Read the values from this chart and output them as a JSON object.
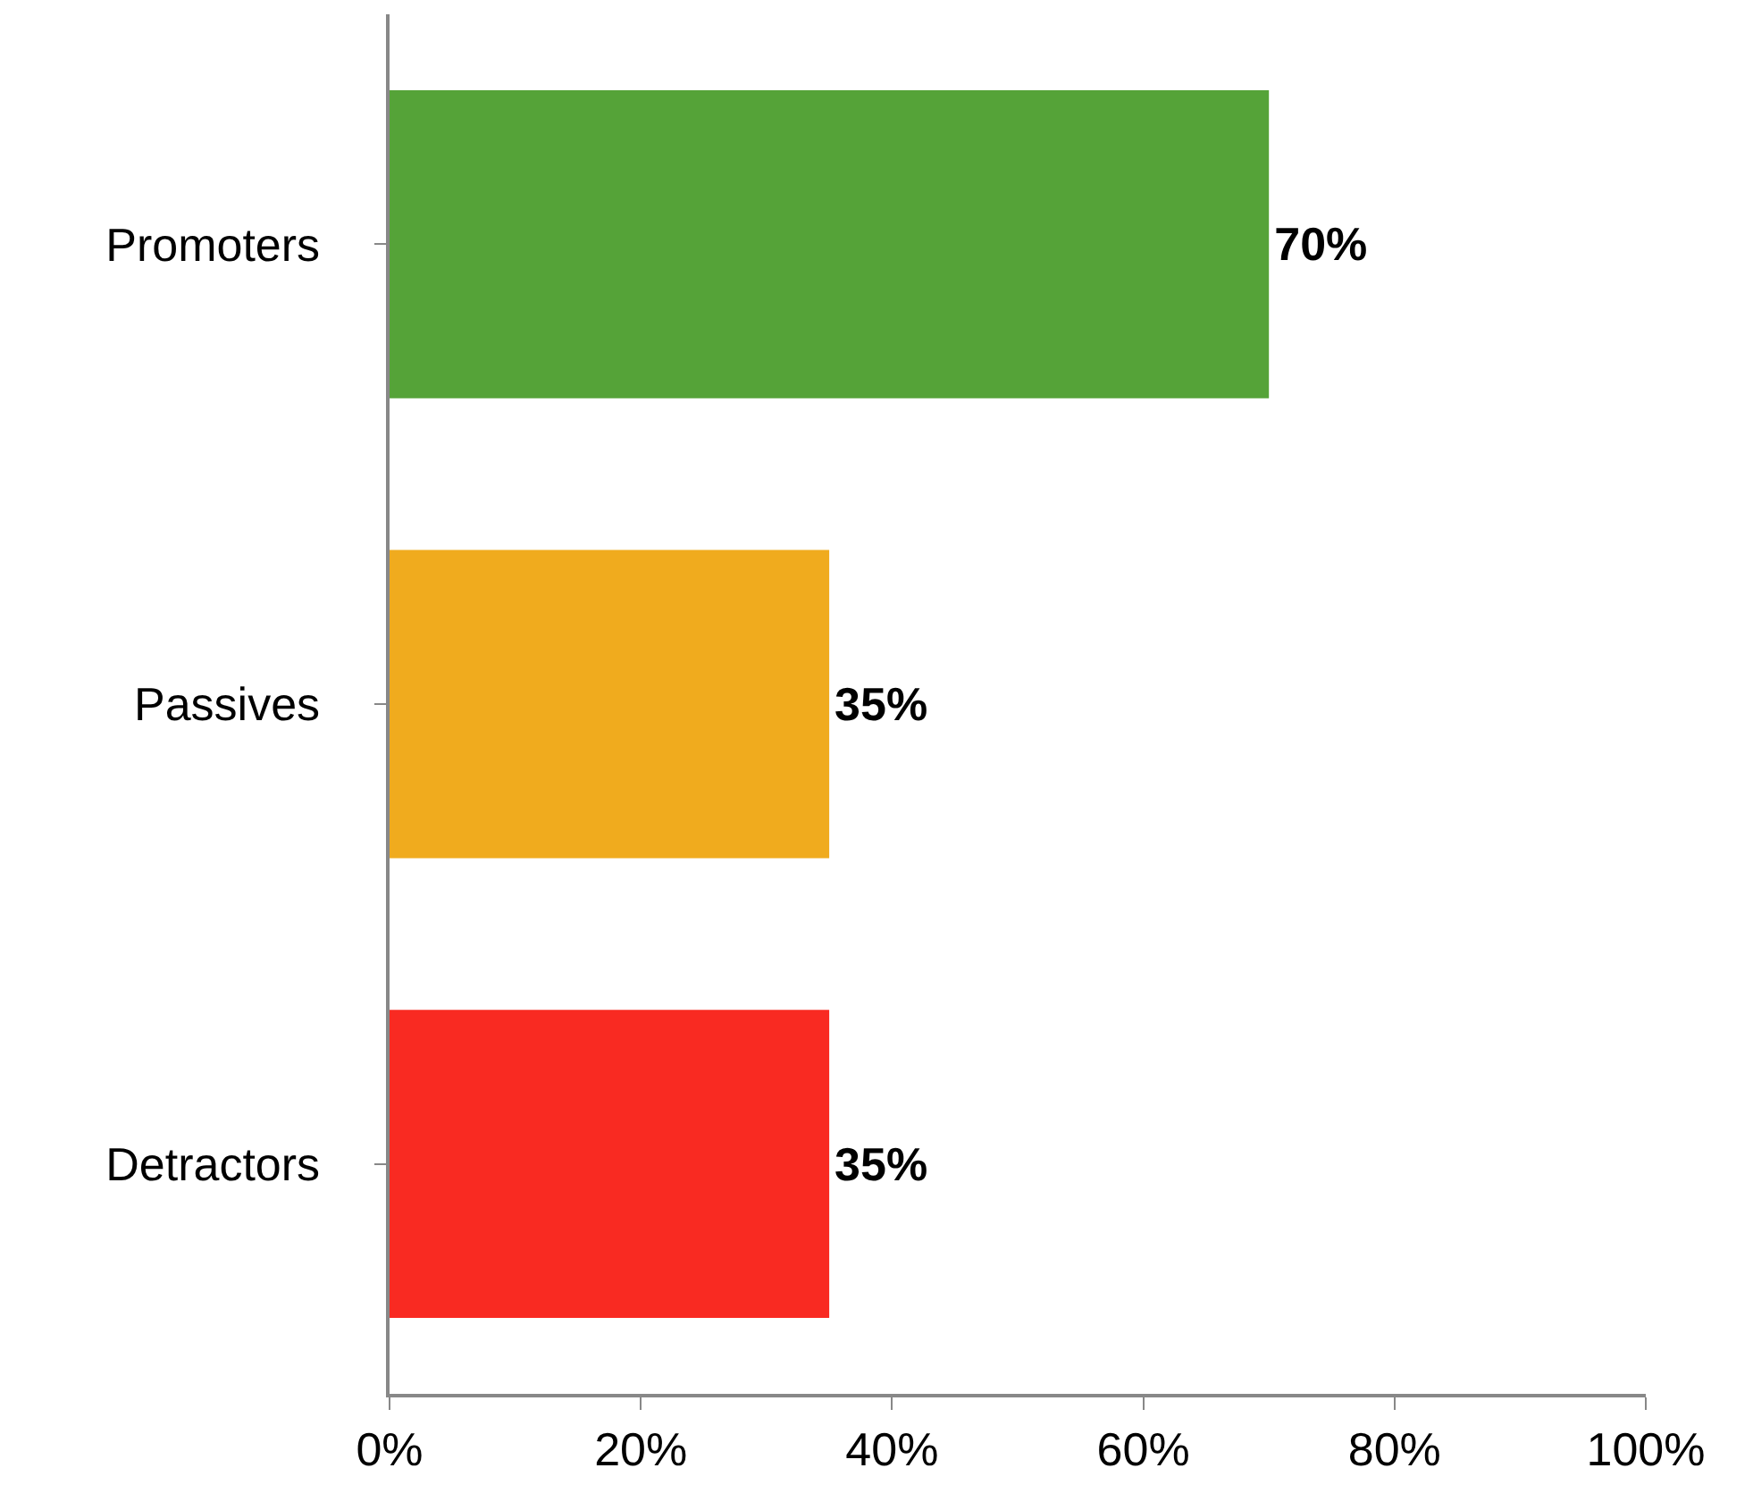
{
  "chart_data": {
    "type": "bar",
    "orientation": "horizontal",
    "categories": [
      "Promoters",
      "Passives",
      "Detractors"
    ],
    "values": [
      70,
      35,
      35
    ],
    "colors": [
      "#55a338",
      "#f0ab1e",
      "#f92a22"
    ],
    "value_labels": [
      "70%",
      "35%",
      "35%"
    ],
    "xlim": [
      0,
      100
    ],
    "xticks": [
      {
        "value": 0,
        "label": "0%"
      },
      {
        "value": 20,
        "label": "20%"
      },
      {
        "value": 40,
        "label": "40%"
      },
      {
        "value": 60,
        "label": "60%"
      },
      {
        "value": 80,
        "label": "80%"
      },
      {
        "value": 100,
        "label": "100%"
      }
    ],
    "grid": false,
    "legend": false
  }
}
